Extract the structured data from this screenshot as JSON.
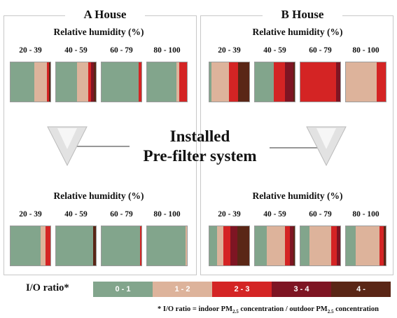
{
  "chart_data": {
    "type": "stacked-bar",
    "title": "Installed Pre-filter system",
    "title_lines": [
      "Installed",
      "Pre-filter system"
    ],
    "subtitle": "Relative humidity (%)",
    "categories": [
      "20 - 39",
      "40 - 59",
      "60 - 79",
      "80 - 100"
    ],
    "legend": {
      "title": "I/O ratio*",
      "items": [
        {
          "label": "0 - 1",
          "color": "#82a58c"
        },
        {
          "label": "1 - 2",
          "color": "#ddb39b"
        },
        {
          "label": "2 - 3",
          "color": "#d42424"
        },
        {
          "label": "3 - 4",
          "color": "#7e1523"
        },
        {
          "label": "4 -",
          "color": "#5a2616"
        }
      ]
    },
    "footnote": "* I/O ratio = indoor PM2.5 concentration / outdoor PM2.5 concentration",
    "panels": [
      {
        "house": "A House",
        "condition": "before",
        "fractions": [
          [
            0.6,
            0.32,
            0.05,
            0.0,
            0.03
          ],
          [
            0.52,
            0.28,
            0.07,
            0.08,
            0.05
          ],
          [
            0.93,
            0.0,
            0.07,
            0.0,
            0.0
          ],
          [
            0.73,
            0.07,
            0.2,
            0.0,
            0.0
          ]
        ]
      },
      {
        "house": "B House",
        "condition": "before",
        "fractions": [
          [
            0.05,
            0.45,
            0.22,
            0.0,
            0.28
          ],
          [
            0.48,
            0.0,
            0.28,
            0.2,
            0.04
          ],
          [
            0.0,
            0.0,
            0.9,
            0.1,
            0.0
          ],
          [
            0.0,
            0.78,
            0.22,
            0.0,
            0.0
          ]
        ]
      },
      {
        "house": "A House",
        "condition": "after",
        "fractions": [
          [
            0.75,
            0.13,
            0.12,
            0.0,
            0.0
          ],
          [
            0.93,
            0.0,
            0.0,
            0.0,
            0.07
          ],
          [
            0.96,
            0.0,
            0.04,
            0.0,
            0.0
          ],
          [
            0.96,
            0.04,
            0.0,
            0.0,
            0.0
          ]
        ]
      },
      {
        "house": "B House",
        "condition": "after",
        "fractions": [
          [
            0.2,
            0.15,
            0.18,
            0.17,
            0.3
          ],
          [
            0.3,
            0.45,
            0.13,
            0.08,
            0.04
          ],
          [
            0.22,
            0.55,
            0.15,
            0.08,
            0.0
          ],
          [
            0.25,
            0.6,
            0.1,
            0.0,
            0.05
          ]
        ]
      }
    ]
  }
}
